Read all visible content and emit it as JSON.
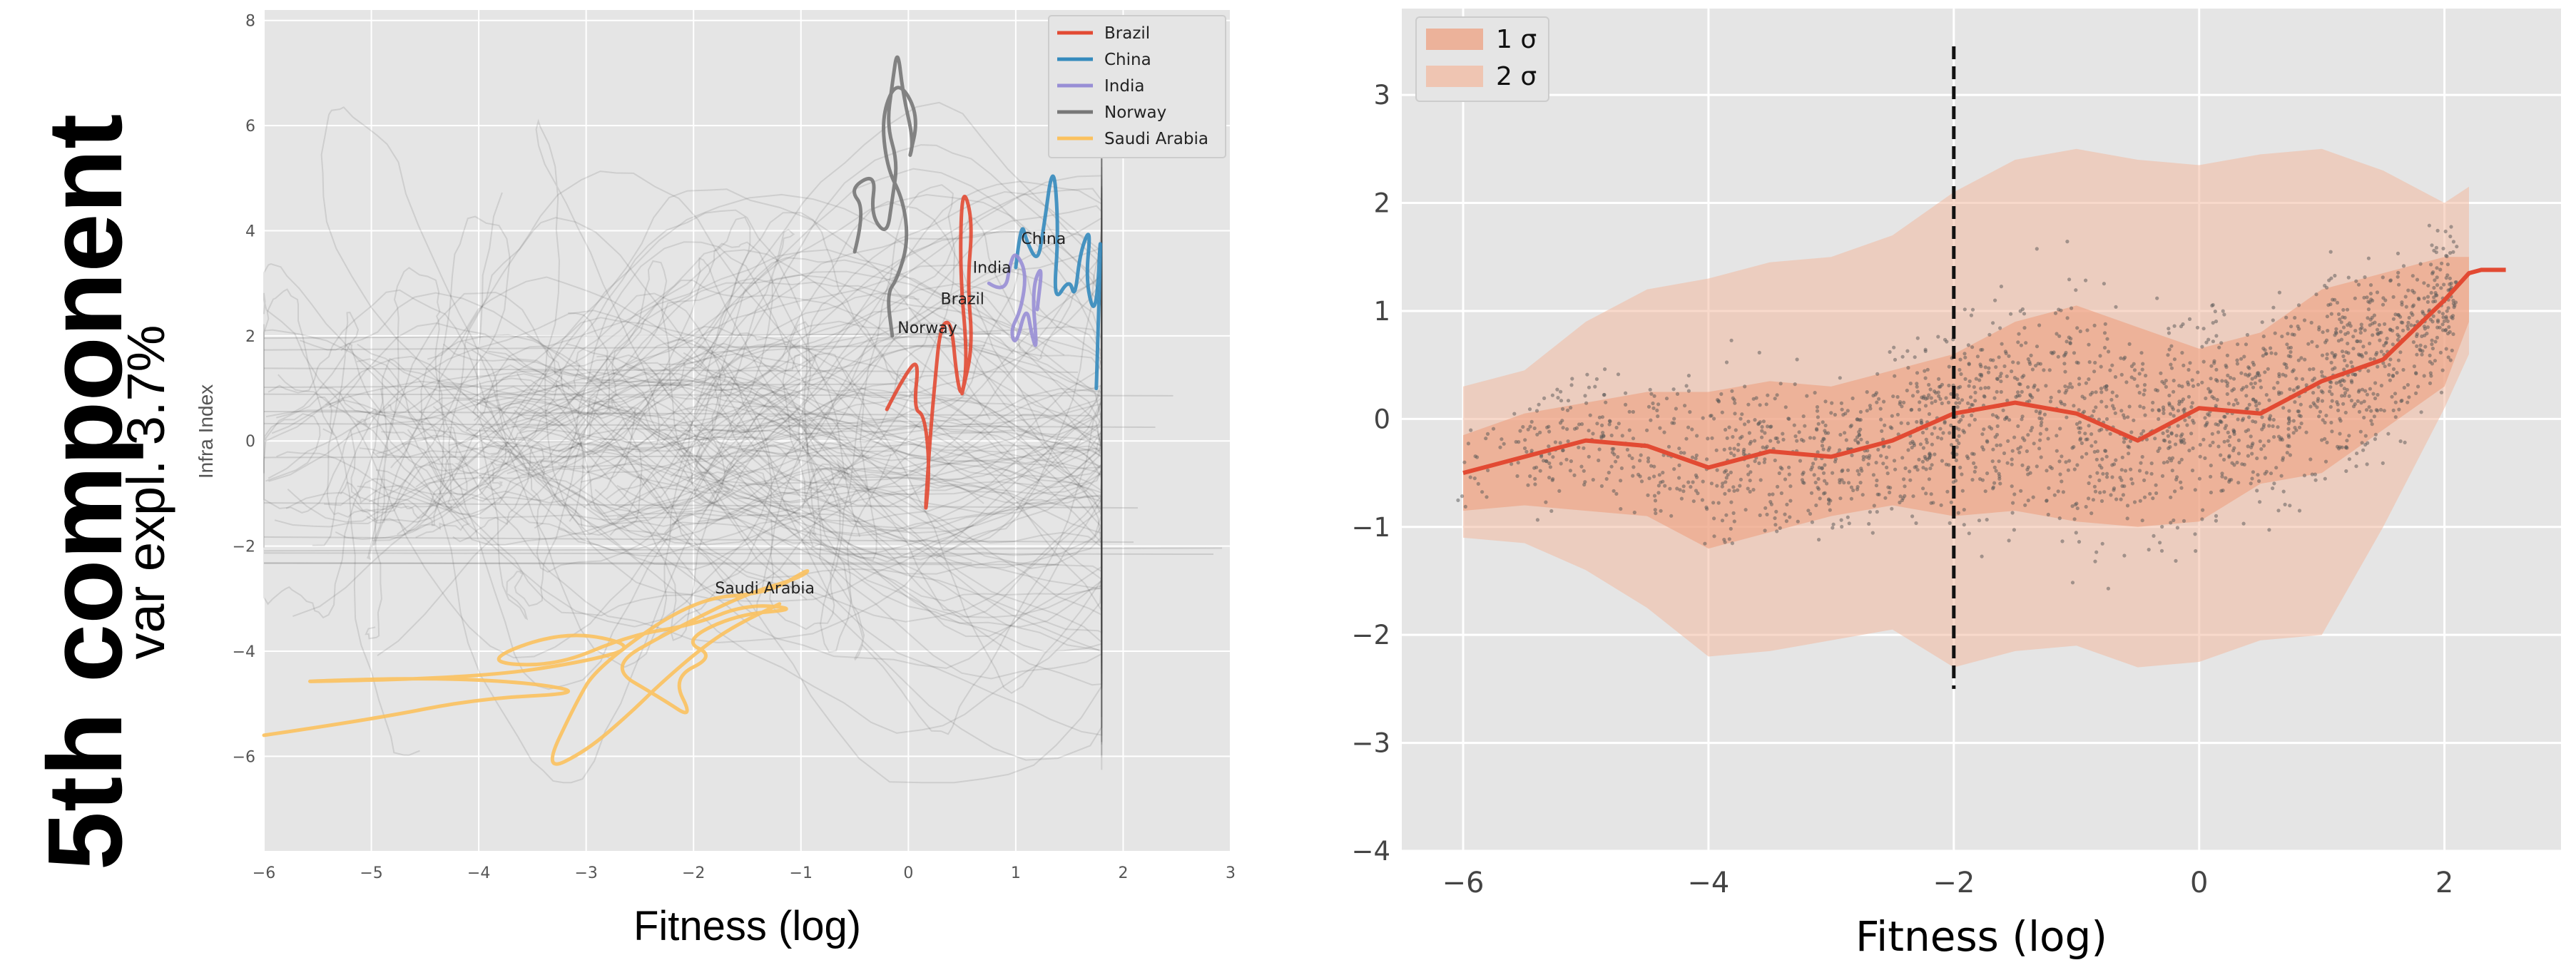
{
  "figure_title": {
    "component": "5th component",
    "variance": "var expl. 3.7%"
  },
  "chart_data": [
    {
      "type": "line",
      "panel": "left",
      "title": "",
      "xlabel": "Fitness (log)",
      "ylabel": "Infra Index",
      "xlim": [
        -6,
        3
      ],
      "ylim": [
        -7.8,
        8.2
      ],
      "xticks": [
        -6,
        -5,
        -4,
        -3,
        -2,
        -1,
        0,
        1,
        2,
        3
      ],
      "yticks": [
        -6,
        -4,
        -2,
        0,
        2,
        4,
        6,
        8
      ],
      "xtick_labels": [
        "−6",
        "−5",
        "−4",
        "−3",
        "−2",
        "−1",
        "0",
        "1",
        "2",
        "3"
      ],
      "ytick_labels": [
        "−6",
        "−4",
        "−2",
        "0",
        "2",
        "4",
        "6",
        "8"
      ],
      "grid": true,
      "legend_position": "top-right",
      "background_series": "other countries (grey trajectories)",
      "series": [
        {
          "name": "Brazil",
          "color": "#e24a33",
          "label_at": [
            0.3,
            2.6
          ],
          "points": [
            [
              -0.2,
              0.6
            ],
            [
              -0.05,
              1.2
            ],
            [
              0.1,
              1.6
            ],
            [
              0.05,
              0.6
            ],
            [
              0.15,
              0.5
            ],
            [
              0.2,
              -0.5
            ],
            [
              0.15,
              -1.6
            ],
            [
              0.2,
              0.0
            ],
            [
              0.25,
              1.2
            ],
            [
              0.3,
              2.2
            ],
            [
              0.4,
              2.3
            ],
            [
              0.45,
              1.2
            ],
            [
              0.5,
              0.8
            ],
            [
              0.55,
              1.6
            ],
            [
              0.48,
              3.2
            ],
            [
              0.5,
              4.9
            ],
            [
              0.6,
              4.2
            ],
            [
              0.55,
              3.0
            ],
            [
              0.6,
              1.8
            ],
            [
              0.5,
              0.9
            ]
          ]
        },
        {
          "name": "China",
          "color": "#348abd",
          "label_at": [
            1.05,
            3.75
          ],
          "points": [
            [
              1.0,
              3.3
            ],
            [
              1.05,
              4.2
            ],
            [
              1.1,
              3.8
            ],
            [
              1.2,
              3.4
            ],
            [
              1.25,
              3.9
            ],
            [
              1.35,
              5.4
            ],
            [
              1.4,
              4.0
            ],
            [
              1.35,
              2.6
            ],
            [
              1.5,
              3.1
            ],
            [
              1.55,
              2.7
            ],
            [
              1.6,
              3.6
            ],
            [
              1.7,
              4.1
            ],
            [
              1.65,
              3.0
            ],
            [
              1.75,
              2.3
            ],
            [
              1.8,
              4.4
            ],
            [
              1.75,
              1.0
            ]
          ]
        },
        {
          "name": "India",
          "color": "#988ed5",
          "label_at": [
            0.6,
            3.2
          ],
          "points": [
            [
              0.75,
              3.0
            ],
            [
              0.9,
              2.8
            ],
            [
              0.95,
              3.4
            ],
            [
              1.0,
              3.6
            ],
            [
              1.1,
              3.2
            ],
            [
              1.05,
              2.5
            ],
            [
              0.95,
              2.1
            ],
            [
              1.0,
              1.8
            ],
            [
              1.1,
              2.6
            ],
            [
              1.15,
              2.0
            ],
            [
              1.2,
              1.7
            ],
            [
              1.15,
              2.9
            ],
            [
              1.25,
              3.4
            ],
            [
              1.2,
              2.5
            ]
          ]
        },
        {
          "name": "Norway",
          "color": "#777777",
          "label_at": [
            -0.1,
            2.05
          ],
          "points": [
            [
              -0.5,
              3.6
            ],
            [
              -0.4,
              4.4
            ],
            [
              -0.55,
              4.8
            ],
            [
              -0.3,
              5.1
            ],
            [
              -0.35,
              4.3
            ],
            [
              -0.2,
              3.9
            ],
            [
              -0.15,
              4.6
            ],
            [
              -0.1,
              5.3
            ],
            [
              -0.2,
              6.0
            ],
            [
              -0.15,
              6.8
            ],
            [
              -0.1,
              7.5
            ],
            [
              -0.05,
              6.6
            ],
            [
              0.05,
              5.7
            ],
            [
              0.0,
              5.3
            ],
            [
              0.1,
              6.2
            ],
            [
              -0.1,
              6.9
            ],
            [
              -0.25,
              6.2
            ],
            [
              -0.2,
              5.2
            ],
            [
              -0.05,
              4.6
            ],
            [
              0.0,
              3.8
            ],
            [
              -0.1,
              3.1
            ],
            [
              -0.2,
              2.8
            ],
            [
              -0.15,
              2.0
            ]
          ]
        },
        {
          "name": "Saudi Arabia",
          "color": "#fbc15e",
          "label_at": [
            -1.8,
            -2.9
          ],
          "points": [
            [
              -6,
              -5.6
            ],
            [
              -5,
              -5.3
            ],
            [
              -4,
              -4.9
            ],
            [
              -3,
              -4.8
            ],
            [
              -3.5,
              -4.6
            ],
            [
              -4.5,
              -4.5
            ],
            [
              -6,
              -4.6
            ],
            [
              -4,
              -4.5
            ],
            [
              -3,
              -4.2
            ],
            [
              -2.5,
              -3.9
            ],
            [
              -3.2,
              -3.6
            ],
            [
              -4,
              -4.2
            ],
            [
              -3.3,
              -4.3
            ],
            [
              -2.6,
              -3.7
            ],
            [
              -2.0,
              -3.5
            ],
            [
              -1.5,
              -3.1
            ],
            [
              -1.0,
              -3.2
            ],
            [
              -1.6,
              -3.3
            ],
            [
              -2.1,
              -3.8
            ],
            [
              -1.8,
              -4.1
            ],
            [
              -2.2,
              -4.5
            ],
            [
              -2.0,
              -5.3
            ],
            [
              -2.3,
              -4.9
            ],
            [
              -2.8,
              -4.3
            ],
            [
              -2.2,
              -3.6
            ],
            [
              -1.5,
              -2.9
            ],
            [
              -1.0,
              -2.6
            ],
            [
              -0.9,
              -2.4
            ],
            [
              -1.3,
              -2.9
            ],
            [
              -2.0,
              -3.0
            ],
            [
              -2.9,
              -4.3
            ],
            [
              -3.1,
              -5.0
            ],
            [
              -3.4,
              -6.3
            ],
            [
              -3.0,
              -5.9
            ],
            [
              -2.6,
              -5.2
            ],
            [
              -2.3,
              -4.6
            ],
            [
              -1.9,
              -3.9
            ],
            [
              -1.6,
              -3.5
            ],
            [
              -1.2,
              -3.1
            ]
          ]
        }
      ]
    },
    {
      "type": "scatter",
      "panel": "right",
      "title": "",
      "xlabel": "Fitness (log)",
      "ylabel": "",
      "xlim": [
        -6.5,
        2.95
      ],
      "ylim": [
        -4.0,
        3.8
      ],
      "xticks": [
        -6,
        -4,
        -2,
        0,
        2
      ],
      "yticks": [
        -4,
        -3,
        -2,
        -1,
        0,
        1,
        2,
        3
      ],
      "xtick_labels": [
        "−6",
        "−4",
        "−2",
        "0",
        "2"
      ],
      "ytick_labels": [
        "−4",
        "−3",
        "−2",
        "−1",
        "0",
        "1",
        "2",
        "3"
      ],
      "grid": true,
      "legend_position": "top-left",
      "legend": [
        "1 σ",
        "2 σ"
      ],
      "vline": {
        "x": -2,
        "y_range": [
          -2.5,
          3.45
        ],
        "style": "dashed"
      },
      "band_x": [
        -6.0,
        -5.5,
        -5.0,
        -4.5,
        -4.0,
        -3.5,
        -3.0,
        -2.5,
        -2.0,
        -1.5,
        -1.0,
        -0.5,
        0.0,
        0.5,
        1.0,
        1.5,
        2.0,
        2.2
      ],
      "mean": [
        -0.5,
        -0.35,
        -0.2,
        -0.25,
        -0.45,
        -0.3,
        -0.35,
        -0.2,
        0.05,
        0.15,
        0.05,
        -0.2,
        0.1,
        0.05,
        0.35,
        0.55,
        1.1,
        1.35
      ],
      "sigma1_low": [
        -0.85,
        -0.8,
        -0.85,
        -0.9,
        -1.2,
        -1.05,
        -0.9,
        -0.8,
        -0.9,
        -0.85,
        -0.95,
        -1.0,
        -0.95,
        -0.6,
        -0.5,
        -0.1,
        0.3,
        0.9
      ],
      "sigma1_high": [
        -0.15,
        0.05,
        0.15,
        0.25,
        0.25,
        0.35,
        0.3,
        0.45,
        0.6,
        0.9,
        1.05,
        0.85,
        0.65,
        0.8,
        1.2,
        1.35,
        1.5,
        1.5
      ],
      "sigma2_low": [
        -1.1,
        -1.15,
        -1.4,
        -1.75,
        -2.2,
        -2.15,
        -2.05,
        -1.95,
        -2.3,
        -2.15,
        -2.1,
        -2.3,
        -2.25,
        -2.05,
        -2.0,
        -1.0,
        0.1,
        0.6
      ],
      "sigma2_high": [
        0.3,
        0.45,
        0.9,
        1.2,
        1.3,
        1.45,
        1.5,
        1.7,
        2.1,
        2.4,
        2.5,
        2.4,
        2.35,
        2.45,
        2.5,
        2.3,
        2.0,
        2.15
      ],
      "mean_tail": {
        "x": [
          2.3,
          2.5
        ],
        "y": [
          1.38,
          1.38
        ]
      },
      "scatter_count": 2200,
      "scatter_color": "#555555"
    }
  ]
}
